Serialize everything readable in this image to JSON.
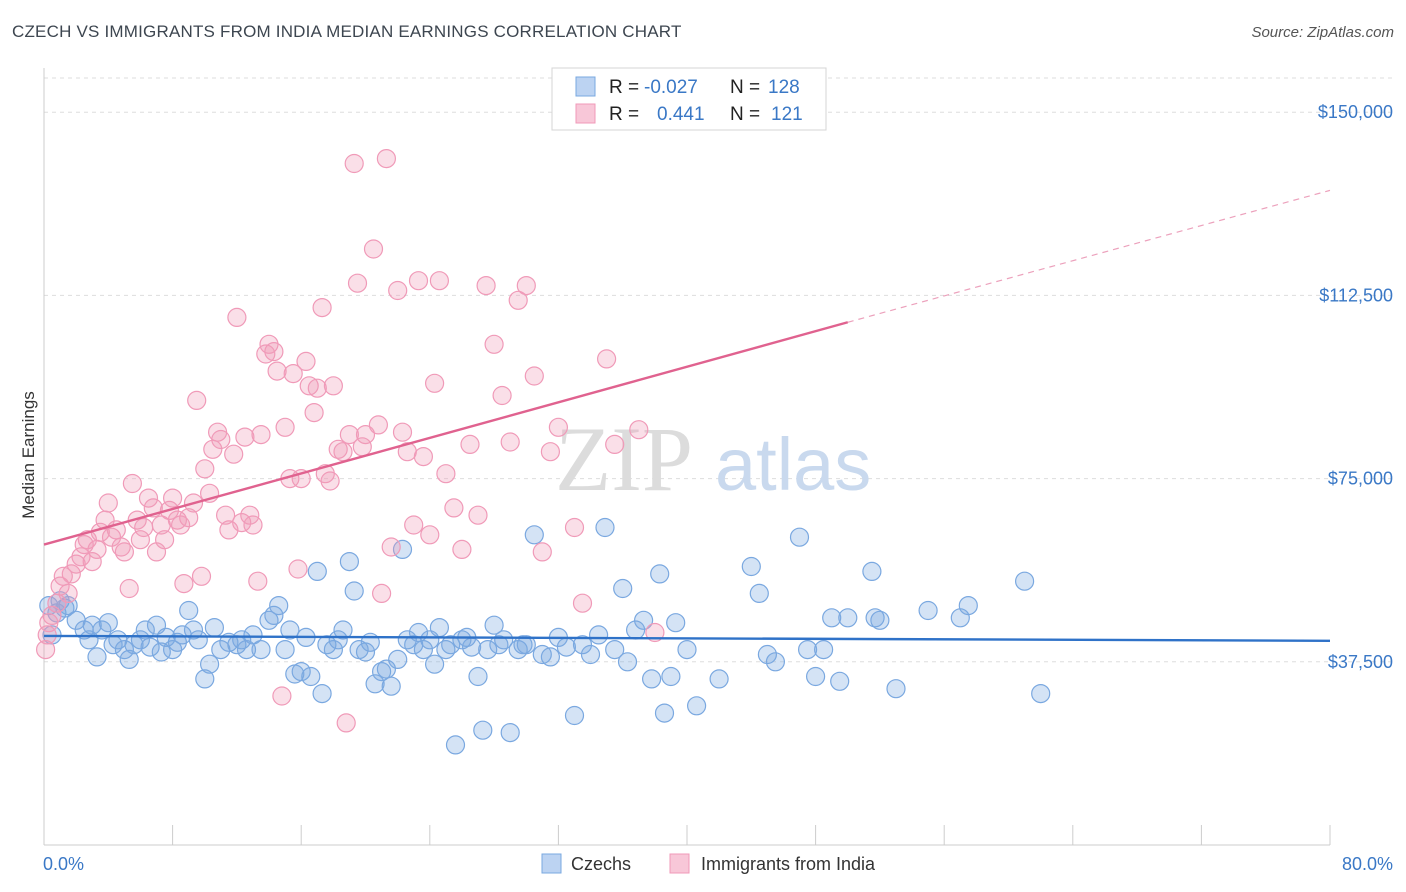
{
  "title": "CZECH VS IMMIGRANTS FROM INDIA MEDIAN EARNINGS CORRELATION CHART",
  "source": "Source: ZipAtlas.com",
  "watermark": {
    "zip": "ZIP",
    "atlas": "atlas"
  },
  "chart_data": {
    "type": "scatter",
    "ylabel": "Median Earnings",
    "xlim": [
      0,
      80
    ],
    "ylim": [
      0,
      157000
    ],
    "x_tick_labels": [
      "0.0%",
      "80.0%"
    ],
    "y_ticks": [
      {
        "value": 37500,
        "label": "$37,500"
      },
      {
        "value": 75000,
        "label": "$75,000"
      },
      {
        "value": 112500,
        "label": "$112,500"
      },
      {
        "value": 150000,
        "label": "$150,000"
      }
    ],
    "grid": true,
    "legend_position": "top-center",
    "series": [
      {
        "name": "Czechs",
        "color": "#7aa8e0",
        "line_color": "#2f72c8",
        "R": "-0.027",
        "N": "128",
        "trend": {
          "x0": 0,
          "y0": 42800,
          "x1": 80,
          "y1": 41800
        },
        "points": [
          [
            0.3,
            49000
          ],
          [
            0.5,
            43000
          ],
          [
            0.8,
            47500
          ],
          [
            1.0,
            50000
          ],
          [
            1.3,
            48500
          ],
          [
            1.5,
            49000
          ],
          [
            2.0,
            46000
          ],
          [
            2.5,
            44000
          ],
          [
            2.8,
            42000
          ],
          [
            3.0,
            45000
          ],
          [
            3.3,
            38500
          ],
          [
            3.6,
            44000
          ],
          [
            4.0,
            45500
          ],
          [
            4.3,
            41000
          ],
          [
            4.6,
            42000
          ],
          [
            5.0,
            40000
          ],
          [
            5.3,
            38000
          ],
          [
            5.6,
            41000
          ],
          [
            6.0,
            42000
          ],
          [
            6.3,
            44000
          ],
          [
            6.6,
            40500
          ],
          [
            7.0,
            45000
          ],
          [
            7.3,
            39500
          ],
          [
            7.6,
            42500
          ],
          [
            8.0,
            40000
          ],
          [
            8.3,
            41500
          ],
          [
            8.6,
            43000
          ],
          [
            9.0,
            48000
          ],
          [
            9.3,
            44000
          ],
          [
            9.6,
            42000
          ],
          [
            10.0,
            34000
          ],
          [
            10.3,
            37000
          ],
          [
            10.6,
            44500
          ],
          [
            11.0,
            40000
          ],
          [
            11.5,
            41500
          ],
          [
            12.0,
            41000
          ],
          [
            12.3,
            42000
          ],
          [
            12.6,
            40000
          ],
          [
            13.0,
            43000
          ],
          [
            13.5,
            40000
          ],
          [
            14.0,
            46000
          ],
          [
            14.3,
            47000
          ],
          [
            14.6,
            49000
          ],
          [
            15.0,
            40000
          ],
          [
            15.3,
            44000
          ],
          [
            15.6,
            35000
          ],
          [
            16.0,
            35500
          ],
          [
            16.3,
            42500
          ],
          [
            16.6,
            34500
          ],
          [
            17.0,
            56000
          ],
          [
            17.3,
            31000
          ],
          [
            17.6,
            41000
          ],
          [
            18.0,
            40000
          ],
          [
            18.3,
            42000
          ],
          [
            18.6,
            44000
          ],
          [
            19.0,
            58000
          ],
          [
            19.3,
            52000
          ],
          [
            19.6,
            40000
          ],
          [
            20.0,
            39500
          ],
          [
            20.3,
            41500
          ],
          [
            20.6,
            33000
          ],
          [
            21.0,
            35500
          ],
          [
            21.3,
            36000
          ],
          [
            21.6,
            32500
          ],
          [
            22.0,
            38000
          ],
          [
            22.3,
            60500
          ],
          [
            22.6,
            42000
          ],
          [
            23.0,
            41000
          ],
          [
            23.3,
            43500
          ],
          [
            23.6,
            40000
          ],
          [
            24.0,
            42000
          ],
          [
            24.3,
            37000
          ],
          [
            24.6,
            44500
          ],
          [
            25.0,
            40000
          ],
          [
            25.3,
            41000
          ],
          [
            25.6,
            20500
          ],
          [
            26.0,
            42000
          ],
          [
            26.3,
            42500
          ],
          [
            26.6,
            40500
          ],
          [
            27.0,
            34500
          ],
          [
            27.3,
            23500
          ],
          [
            27.6,
            40000
          ],
          [
            28.0,
            45000
          ],
          [
            28.3,
            41000
          ],
          [
            28.6,
            42000
          ],
          [
            29.0,
            23000
          ],
          [
            29.5,
            40000
          ],
          [
            29.8,
            41000
          ],
          [
            30.0,
            41000
          ],
          [
            30.5,
            63500
          ],
          [
            31.0,
            39000
          ],
          [
            31.5,
            38500
          ],
          [
            32.0,
            42500
          ],
          [
            32.5,
            40500
          ],
          [
            33.0,
            26500
          ],
          [
            33.5,
            41000
          ],
          [
            34.0,
            39000
          ],
          [
            34.5,
            43000
          ],
          [
            34.9,
            65000
          ],
          [
            35.5,
            40000
          ],
          [
            36.0,
            52500
          ],
          [
            36.3,
            37500
          ],
          [
            36.8,
            44000
          ],
          [
            37.3,
            46000
          ],
          [
            37.8,
            34000
          ],
          [
            38.3,
            55500
          ],
          [
            38.6,
            27000
          ],
          [
            39.0,
            34500
          ],
          [
            39.3,
            45500
          ],
          [
            40.0,
            40000
          ],
          [
            40.6,
            28500
          ],
          [
            42.0,
            34000
          ],
          [
            44.0,
            57000
          ],
          [
            44.5,
            51500
          ],
          [
            45.0,
            39000
          ],
          [
            45.5,
            37500
          ],
          [
            47.0,
            63000
          ],
          [
            47.5,
            40000
          ],
          [
            48.0,
            34500
          ],
          [
            48.5,
            40000
          ],
          [
            49.0,
            46500
          ],
          [
            49.5,
            33500
          ],
          [
            50.0,
            46500
          ],
          [
            51.5,
            56000
          ],
          [
            51.7,
            46500
          ],
          [
            52.0,
            46000
          ],
          [
            53.0,
            32000
          ],
          [
            55.0,
            48000
          ],
          [
            57.0,
            46500
          ],
          [
            57.5,
            49000
          ],
          [
            61.0,
            54000
          ],
          [
            62.0,
            31000
          ]
        ]
      },
      {
        "name": "Immigrants from India",
        "color": "#f09ab8",
        "line_color": "#e0628f",
        "R": "0.441",
        "N": "121",
        "trend": {
          "x0": 0,
          "y0": 61500,
          "x1": 50,
          "y1": 107000,
          "x_dash_end": 80,
          "y_dash_end": 134000
        },
        "points": [
          [
            0.1,
            40000
          ],
          [
            0.2,
            43000
          ],
          [
            0.3,
            45500
          ],
          [
            0.5,
            47000
          ],
          [
            0.8,
            49500
          ],
          [
            1.0,
            53000
          ],
          [
            1.2,
            55000
          ],
          [
            1.5,
            51500
          ],
          [
            1.7,
            55500
          ],
          [
            2.0,
            57500
          ],
          [
            2.3,
            59000
          ],
          [
            2.5,
            61500
          ],
          [
            2.7,
            62500
          ],
          [
            3.0,
            58000
          ],
          [
            3.3,
            60500
          ],
          [
            3.5,
            64000
          ],
          [
            3.8,
            66500
          ],
          [
            4.0,
            70000
          ],
          [
            4.2,
            63000
          ],
          [
            4.5,
            64500
          ],
          [
            4.8,
            61000
          ],
          [
            5.0,
            60000
          ],
          [
            5.3,
            52500
          ],
          [
            5.5,
            74000
          ],
          [
            5.8,
            66500
          ],
          [
            6.0,
            62500
          ],
          [
            6.2,
            65000
          ],
          [
            6.5,
            71000
          ],
          [
            6.8,
            69000
          ],
          [
            7.0,
            60000
          ],
          [
            7.3,
            65500
          ],
          [
            7.5,
            62500
          ],
          [
            7.8,
            68500
          ],
          [
            8.0,
            71000
          ],
          [
            8.3,
            66500
          ],
          [
            8.5,
            65500
          ],
          [
            8.7,
            53500
          ],
          [
            9.0,
            67000
          ],
          [
            9.3,
            70000
          ],
          [
            9.5,
            91000
          ],
          [
            9.8,
            55000
          ],
          [
            10.0,
            77000
          ],
          [
            10.3,
            72000
          ],
          [
            10.5,
            81000
          ],
          [
            10.8,
            84500
          ],
          [
            11.0,
            83000
          ],
          [
            11.3,
            67500
          ],
          [
            11.5,
            64500
          ],
          [
            11.8,
            80000
          ],
          [
            12.0,
            108000
          ],
          [
            12.3,
            66000
          ],
          [
            12.5,
            83500
          ],
          [
            12.8,
            67500
          ],
          [
            13.0,
            65500
          ],
          [
            13.3,
            54000
          ],
          [
            13.5,
            84000
          ],
          [
            13.8,
            100500
          ],
          [
            14.0,
            102500
          ],
          [
            14.3,
            101000
          ],
          [
            14.5,
            97000
          ],
          [
            14.8,
            30500
          ],
          [
            15.0,
            85500
          ],
          [
            15.3,
            75000
          ],
          [
            15.5,
            96500
          ],
          [
            15.8,
            56500
          ],
          [
            16.0,
            75000
          ],
          [
            16.3,
            99000
          ],
          [
            16.5,
            94000
          ],
          [
            16.8,
            88500
          ],
          [
            17.0,
            93500
          ],
          [
            17.3,
            110000
          ],
          [
            17.5,
            76000
          ],
          [
            17.8,
            74500
          ],
          [
            18.0,
            94000
          ],
          [
            18.3,
            81000
          ],
          [
            18.6,
            80500
          ],
          [
            18.8,
            25000
          ],
          [
            19.0,
            84000
          ],
          [
            19.3,
            139500
          ],
          [
            19.5,
            115000
          ],
          [
            19.8,
            81500
          ],
          [
            20.0,
            84000
          ],
          [
            20.5,
            122000
          ],
          [
            20.8,
            86000
          ],
          [
            21.0,
            51500
          ],
          [
            21.3,
            140500
          ],
          [
            21.6,
            61000
          ],
          [
            22.0,
            113500
          ],
          [
            22.3,
            84500
          ],
          [
            22.6,
            80500
          ],
          [
            23.0,
            65500
          ],
          [
            23.3,
            115500
          ],
          [
            23.6,
            79500
          ],
          [
            24.0,
            63500
          ],
          [
            24.3,
            94500
          ],
          [
            24.6,
            115500
          ],
          [
            25.0,
            76000
          ],
          [
            25.5,
            69000
          ],
          [
            26.0,
            60500
          ],
          [
            26.5,
            82000
          ],
          [
            27.0,
            67500
          ],
          [
            27.5,
            114500
          ],
          [
            28.0,
            102500
          ],
          [
            28.5,
            92000
          ],
          [
            29.0,
            82500
          ],
          [
            29.5,
            111500
          ],
          [
            30.0,
            114500
          ],
          [
            30.5,
            96000
          ],
          [
            31.0,
            60000
          ],
          [
            31.5,
            80500
          ],
          [
            32.0,
            85500
          ],
          [
            33.0,
            65000
          ],
          [
            33.5,
            49500
          ],
          [
            35.0,
            99500
          ],
          [
            35.5,
            82000
          ],
          [
            37.0,
            85000
          ],
          [
            38.0,
            43500
          ]
        ]
      }
    ]
  },
  "legend": {
    "rows": [
      {
        "r_label": "R = ",
        "r_value": "-0.027",
        "n_label": "N = ",
        "n_value": "128"
      },
      {
        "r_label": "R = ",
        "r_value": "0.441",
        "n_label": "N = ",
        "n_value": "121"
      }
    ]
  },
  "bottom_legend": [
    "Czechs",
    "Immigrants from India"
  ]
}
